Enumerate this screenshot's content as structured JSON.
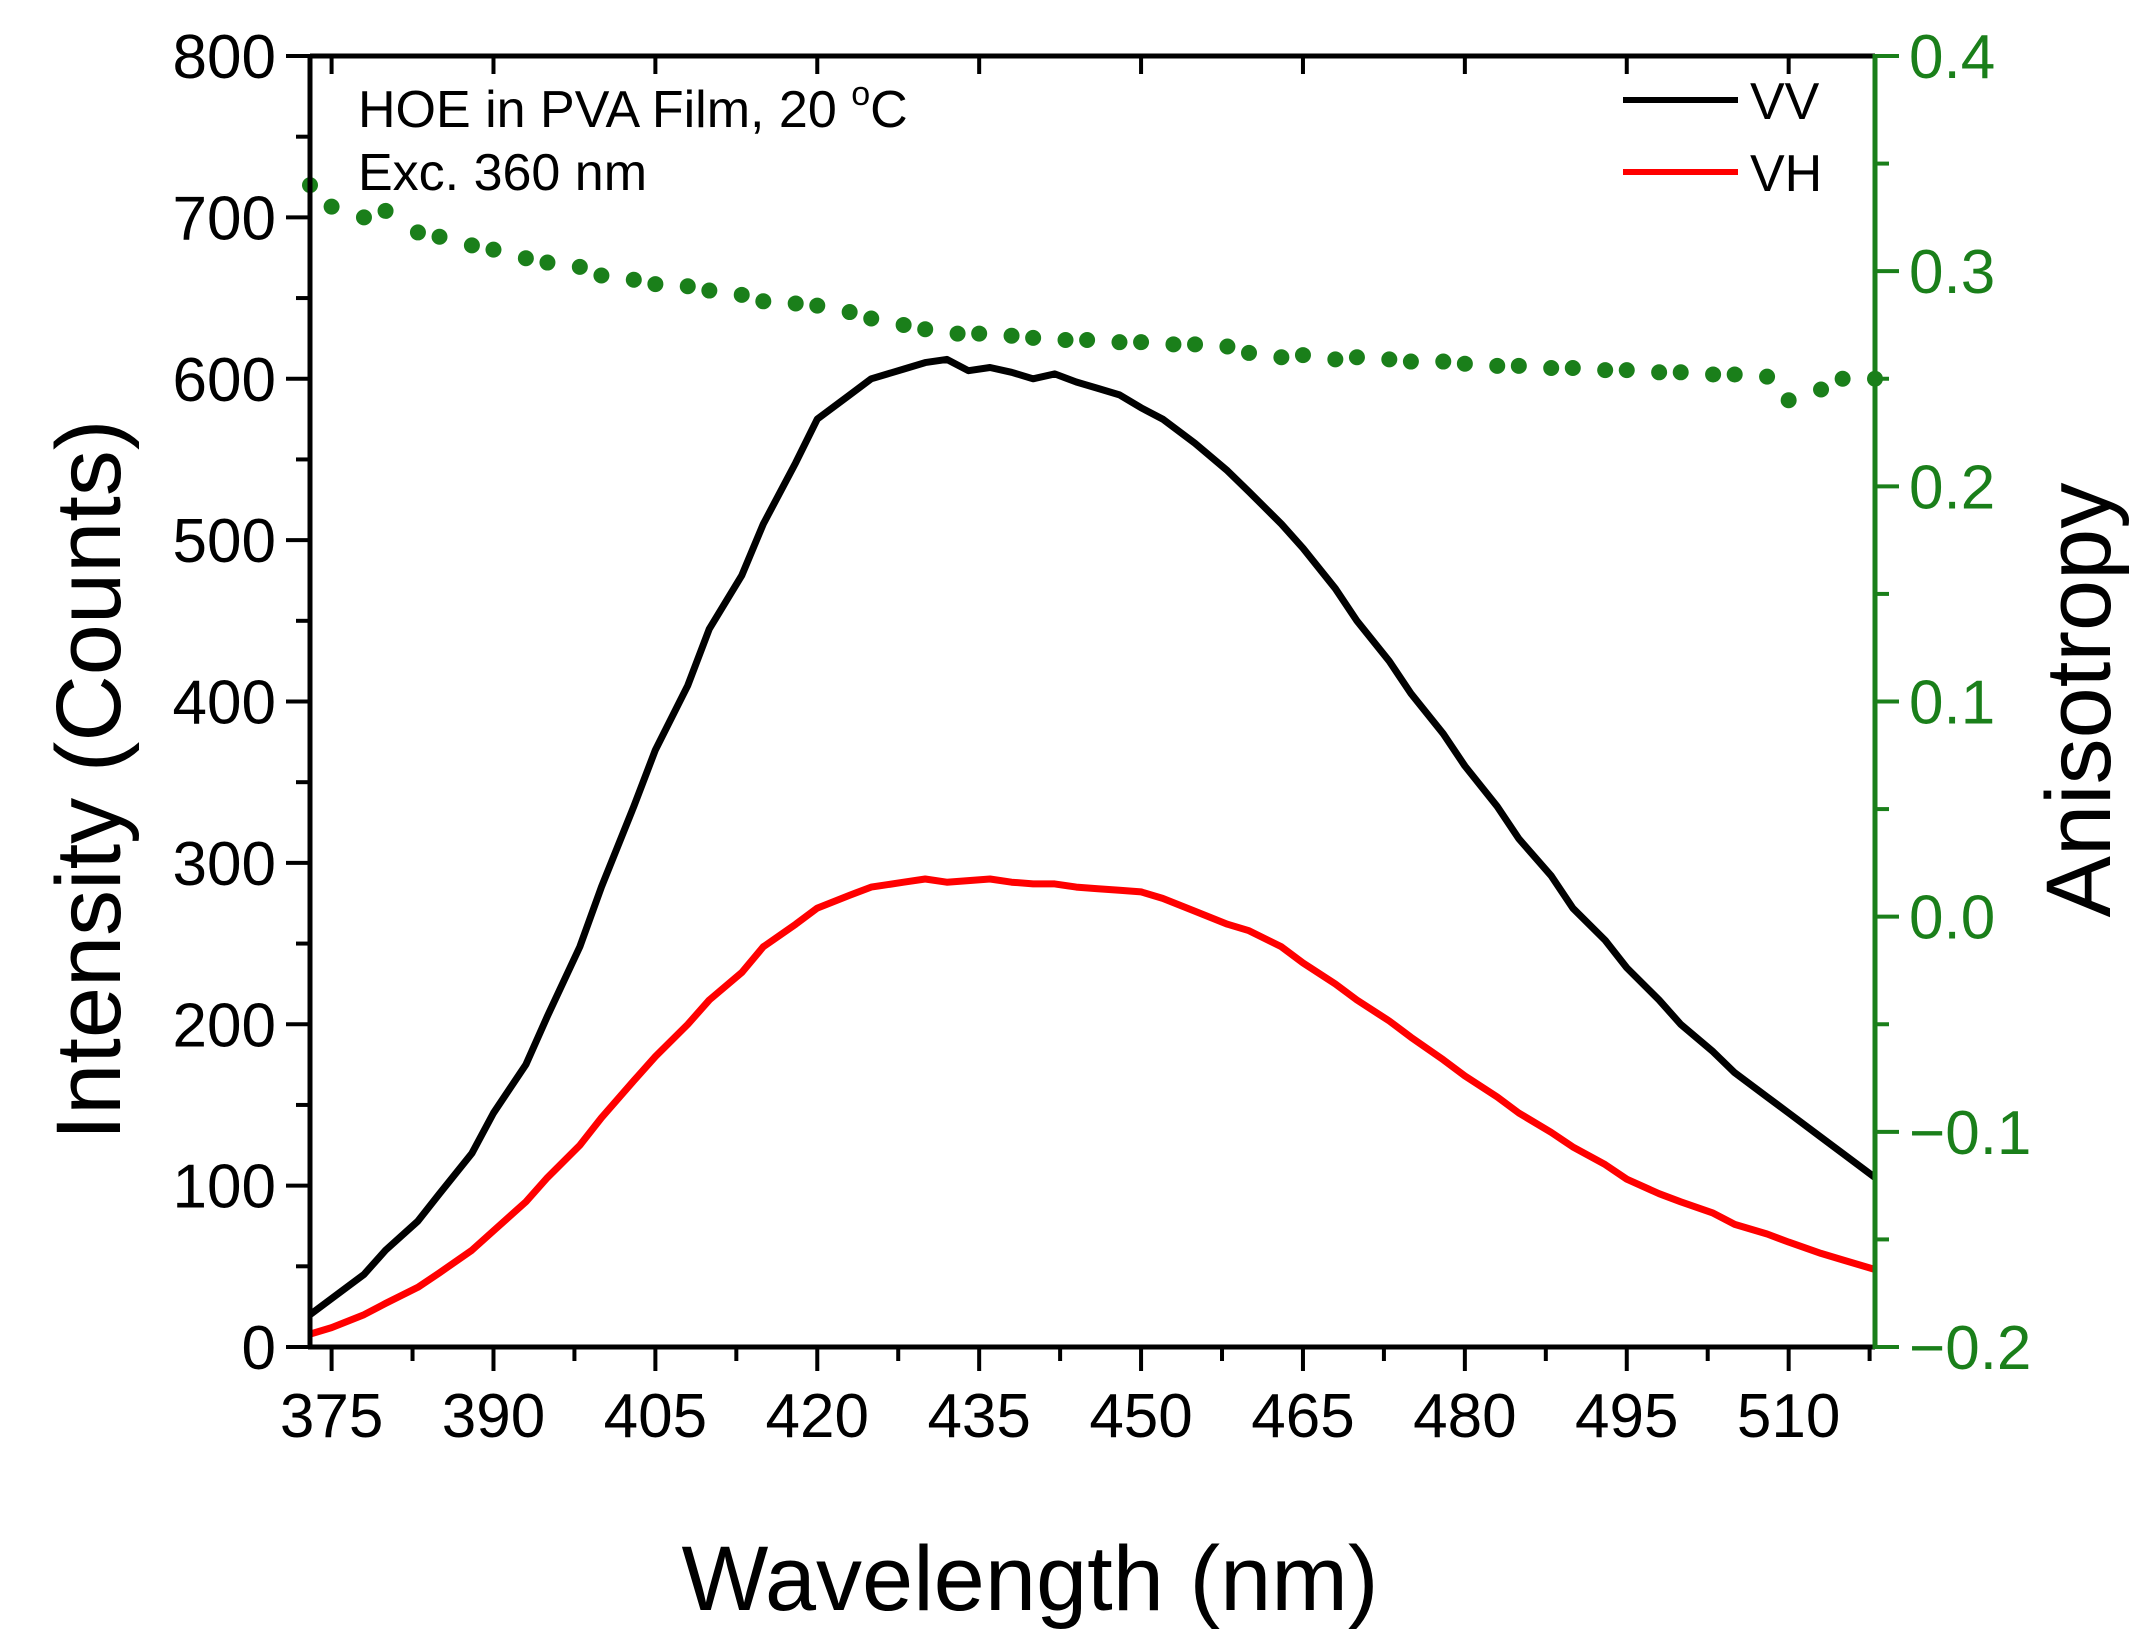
{
  "chart_data": {
    "type": "line",
    "xlabel": "Wavelength (nm)",
    "ylabel": "Intensity (Counts)",
    "y2label": "Anisotropy",
    "xlim": [
      373,
      518
    ],
    "ylim": [
      0,
      800
    ],
    "y2lim": [
      -0.2,
      0.4
    ],
    "xticks": [
      "375",
      "390",
      "405",
      "420",
      "435",
      "450",
      "465",
      "480",
      "495",
      "510"
    ],
    "yticks": [
      "0",
      "100",
      "200",
      "300",
      "400",
      "500",
      "600",
      "700",
      "800"
    ],
    "y2ticks": [
      "−0.2",
      "−0.1",
      "0.0",
      "0.1",
      "0.2",
      "0.3",
      "0.4"
    ],
    "annotation": {
      "line1": "HOE in PVA Film, 20 ",
      "degree": "o",
      "unit": "C",
      "line2": "Exc. 360 nm"
    },
    "legend": {
      "position": "top-right"
    },
    "colors": {
      "vv": "#000000",
      "vh": "#ff0000",
      "anisotropy": "#1a7f1a"
    },
    "series": [
      {
        "name": "VV",
        "axis": "left",
        "x": [
          373,
          375,
          378,
          380,
          383,
          385,
          388,
          390,
          393,
          395,
          398,
          400,
          403,
          405,
          408,
          410,
          413,
          415,
          418,
          420,
          423,
          425,
          428,
          430,
          432,
          434,
          436,
          438,
          440,
          442,
          444,
          446,
          448,
          450,
          452,
          455,
          458,
          460,
          463,
          465,
          468,
          470,
          473,
          475,
          478,
          480,
          483,
          485,
          488,
          490,
          493,
          495,
          498,
          500,
          503,
          505,
          508,
          510,
          513,
          515,
          518
        ],
        "values": [
          20,
          30,
          45,
          60,
          78,
          95,
          120,
          145,
          175,
          205,
          248,
          285,
          335,
          370,
          410,
          445,
          478,
          510,
          548,
          575,
          590,
          600,
          606,
          610,
          612,
          605,
          607,
          604,
          600,
          603,
          598,
          594,
          590,
          582,
          575,
          560,
          543,
          530,
          510,
          495,
          470,
          450,
          425,
          405,
          380,
          360,
          335,
          315,
          292,
          272,
          252,
          235,
          215,
          200,
          183,
          170,
          155,
          145,
          130,
          120,
          105
        ]
      },
      {
        "name": "VH",
        "axis": "left",
        "x": [
          373,
          375,
          378,
          380,
          383,
          385,
          388,
          390,
          393,
          395,
          398,
          400,
          403,
          405,
          408,
          410,
          413,
          415,
          418,
          420,
          423,
          425,
          428,
          430,
          432,
          434,
          436,
          438,
          440,
          442,
          444,
          446,
          448,
          450,
          452,
          455,
          458,
          460,
          463,
          465,
          468,
          470,
          473,
          475,
          478,
          480,
          483,
          485,
          488,
          490,
          493,
          495,
          498,
          500,
          503,
          505,
          508,
          510,
          513,
          515,
          518
        ],
        "values": [
          8,
          12,
          20,
          27,
          37,
          46,
          60,
          72,
          90,
          105,
          125,
          142,
          165,
          180,
          200,
          215,
          232,
          248,
          262,
          272,
          280,
          285,
          288,
          290,
          288,
          289,
          290,
          288,
          287,
          287,
          285,
          284,
          283,
          282,
          278,
          270,
          262,
          258,
          248,
          238,
          225,
          215,
          202,
          192,
          178,
          168,
          155,
          145,
          133,
          124,
          113,
          104,
          95,
          90,
          83,
          76,
          70,
          65,
          58,
          54,
          48
        ]
      },
      {
        "name": "Anisotropy",
        "axis": "right",
        "style": "dots",
        "x": [
          373,
          375,
          378,
          380,
          383,
          385,
          388,
          390,
          393,
          395,
          398,
          400,
          403,
          405,
          408,
          410,
          413,
          415,
          418,
          420,
          423,
          425,
          428,
          430,
          433,
          435,
          438,
          440,
          443,
          445,
          448,
          450,
          453,
          455,
          458,
          460,
          463,
          465,
          468,
          470,
          473,
          475,
          478,
          480,
          483,
          485,
          488,
          490,
          493,
          495,
          498,
          500,
          503,
          505,
          508,
          510,
          513,
          515,
          518
        ],
        "values": [
          0.34,
          0.33,
          0.325,
          0.328,
          0.318,
          0.316,
          0.312,
          0.31,
          0.306,
          0.304,
          0.302,
          0.298,
          0.296,
          0.294,
          0.293,
          0.291,
          0.289,
          0.286,
          0.285,
          0.284,
          0.281,
          0.278,
          0.275,
          0.273,
          0.271,
          0.271,
          0.27,
          0.269,
          0.268,
          0.268,
          0.267,
          0.267,
          0.266,
          0.266,
          0.265,
          0.262,
          0.26,
          0.261,
          0.259,
          0.26,
          0.259,
          0.258,
          0.258,
          0.257,
          0.256,
          0.256,
          0.255,
          0.255,
          0.254,
          0.254,
          0.253,
          0.253,
          0.252,
          0.252,
          0.251,
          0.24,
          0.245,
          0.25,
          0.25
        ]
      }
    ]
  }
}
